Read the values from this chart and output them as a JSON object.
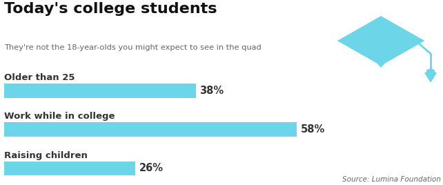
{
  "title": "Today's college students",
  "subtitle": "They're not the 18-year-olds you might expect to see in the quad",
  "categories": [
    "Older than 25",
    "Work while in college",
    "Raising children"
  ],
  "values": [
    38,
    58,
    26
  ],
  "bar_color": "#6dd5e8",
  "label_color": "#333333",
  "pct_color": "#333333",
  "title_color": "#111111",
  "subtitle_color": "#666666",
  "source_text": "Source: Lumina Foundation",
  "background_color": "#ffffff",
  "cap_color": "#6dd5e8",
  "max_val": 65
}
